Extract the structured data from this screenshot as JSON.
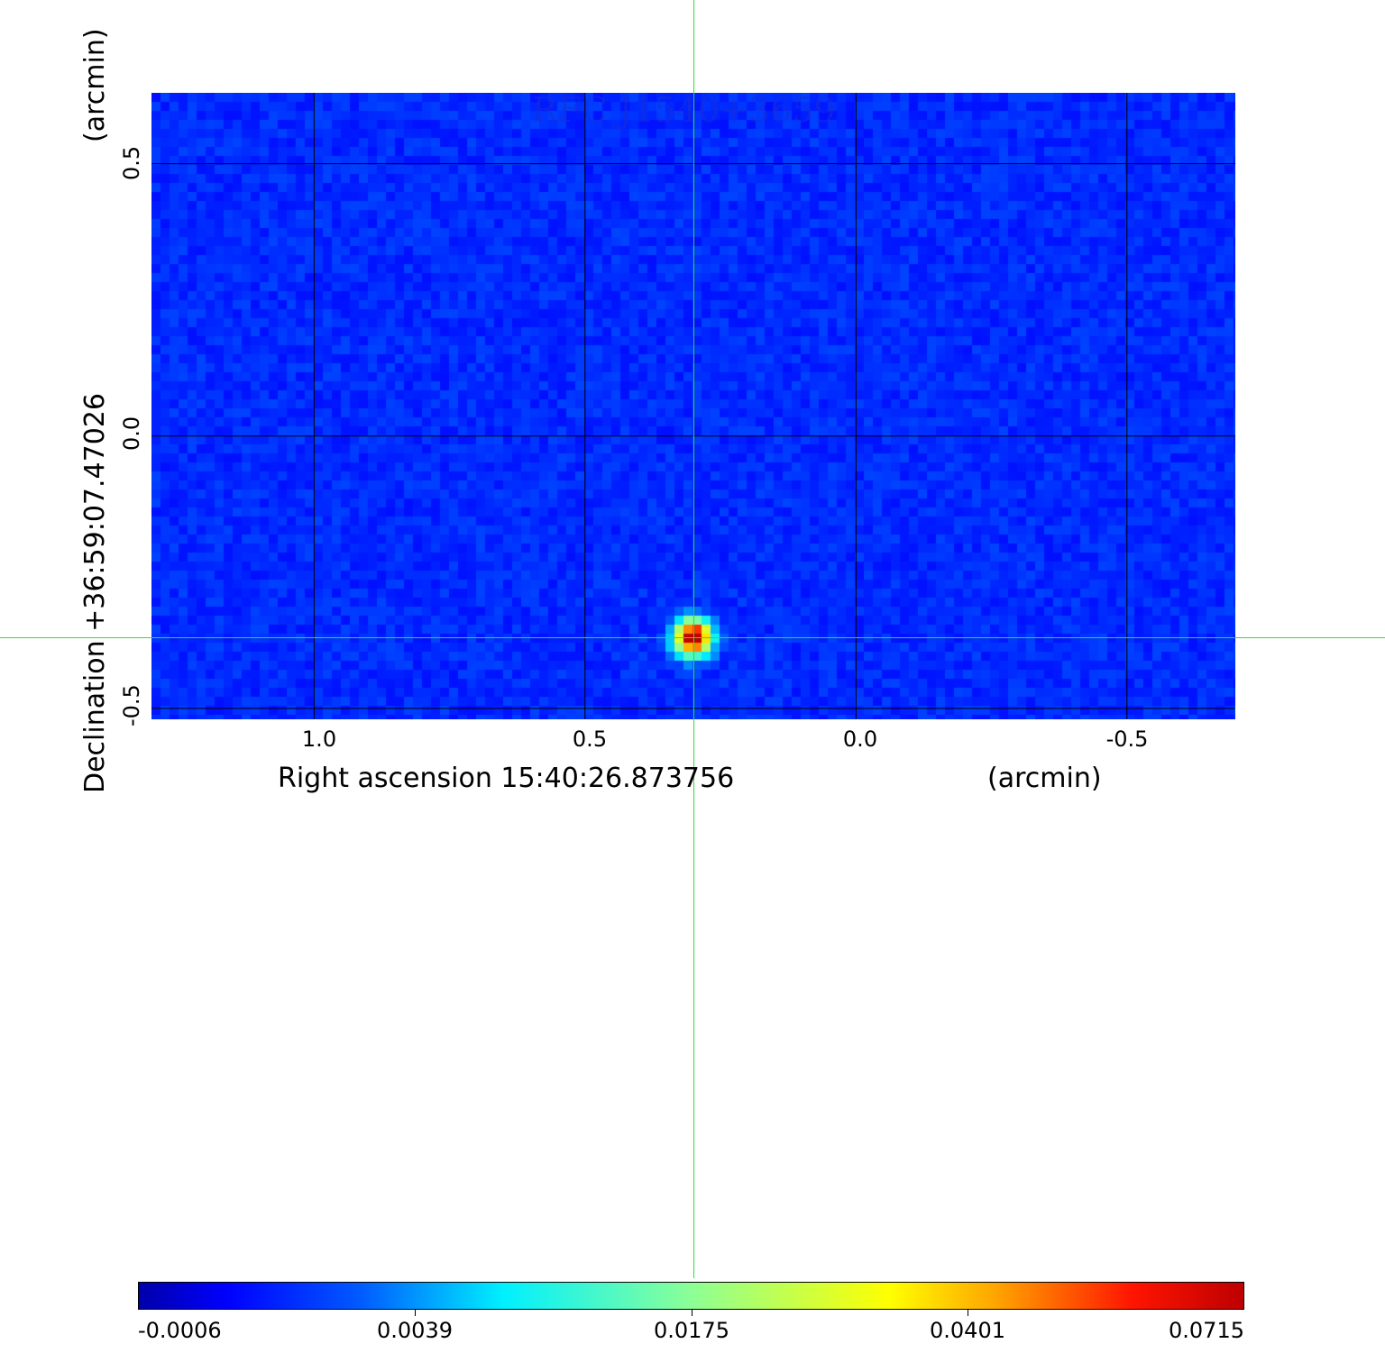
{
  "chart_data": {
    "type": "heatmap",
    "title": "RFC J1540+3659",
    "colormap": "jet",
    "xlabel": "Right ascension  15:40:26.873756",
    "xlabel_unit": "(arcmin)",
    "ylabel": "Declination  +36:59:07.47026",
    "ylabel_unit": "(arcmin)",
    "x_ticks": [
      "1.0",
      "0.5",
      "0.0",
      "-0.5"
    ],
    "x_tick_values": [
      1.0,
      0.5,
      0.0,
      -0.5
    ],
    "xlim": [
      1.3,
      -0.7
    ],
    "y_ticks": [
      "0.5",
      "0.0",
      "-0.5"
    ],
    "y_tick_values": [
      0.5,
      0.0,
      -0.5
    ],
    "ylim": [
      -0.52,
      0.63
    ],
    "grid": true,
    "source_peak": {
      "ra_arcmin": 0.3,
      "dec_arcmin": -0.37,
      "value": 0.0715
    },
    "crosshair": {
      "ra_arcmin": 0.3,
      "dec_arcmin": -0.37
    },
    "colorbar": {
      "ticks": [
        "-0.0006",
        "0.0039",
        "0.0175",
        "0.0401",
        "0.0715"
      ],
      "range": [
        -0.0006,
        0.0715
      ]
    }
  },
  "colors": {
    "crosshair": "#33dd33",
    "grid": "#000000"
  }
}
